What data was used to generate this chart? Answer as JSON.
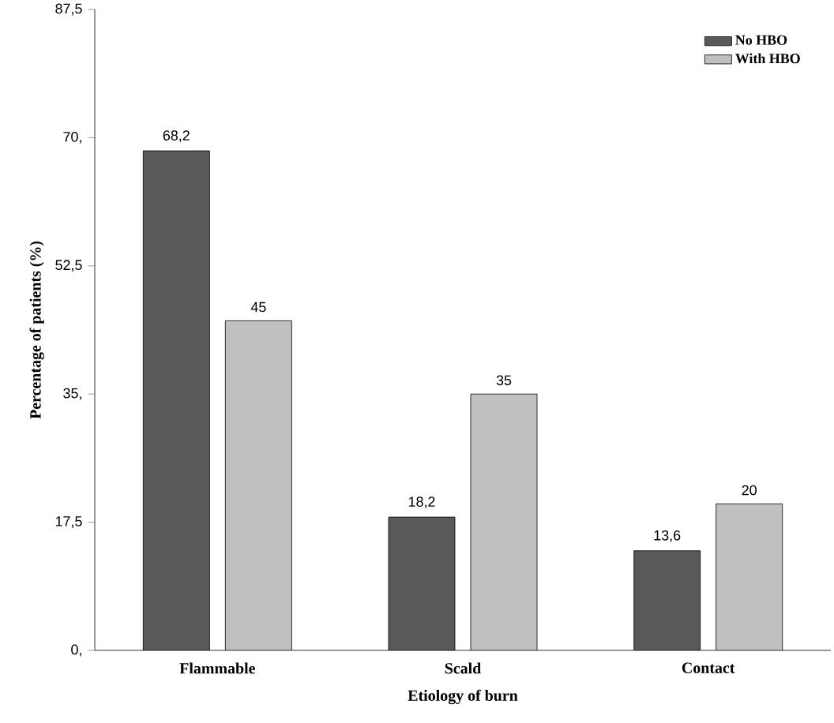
{
  "chart_data": {
    "type": "bar",
    "xlabel": "Etiology of burn",
    "ylabel": "Percentage of patients (%)",
    "categories": [
      "Flammable",
      "Scald",
      "Contact"
    ],
    "series": [
      {
        "name": "No HBO",
        "color": "#595959",
        "values": [
          68.2,
          18.2,
          13.6
        ],
        "value_labels": [
          "68,2",
          "18,2",
          "13,6"
        ]
      },
      {
        "name": "With HBO",
        "color": "#c0c0c0",
        "values": [
          45,
          35,
          20
        ],
        "value_labels": [
          "45",
          "35",
          "20"
        ]
      }
    ],
    "ylim": [
      0,
      87.5
    ],
    "yticks": [
      {
        "value": 0,
        "label": "0,"
      },
      {
        "value": 17.5,
        "label": "17,5"
      },
      {
        "value": 35,
        "label": "35,"
      },
      {
        "value": 52.5,
        "label": "52,5"
      },
      {
        "value": 70,
        "label": "70,"
      },
      {
        "value": 87.5,
        "label": "87,5"
      }
    ],
    "legend": "top right",
    "grid": false
  }
}
